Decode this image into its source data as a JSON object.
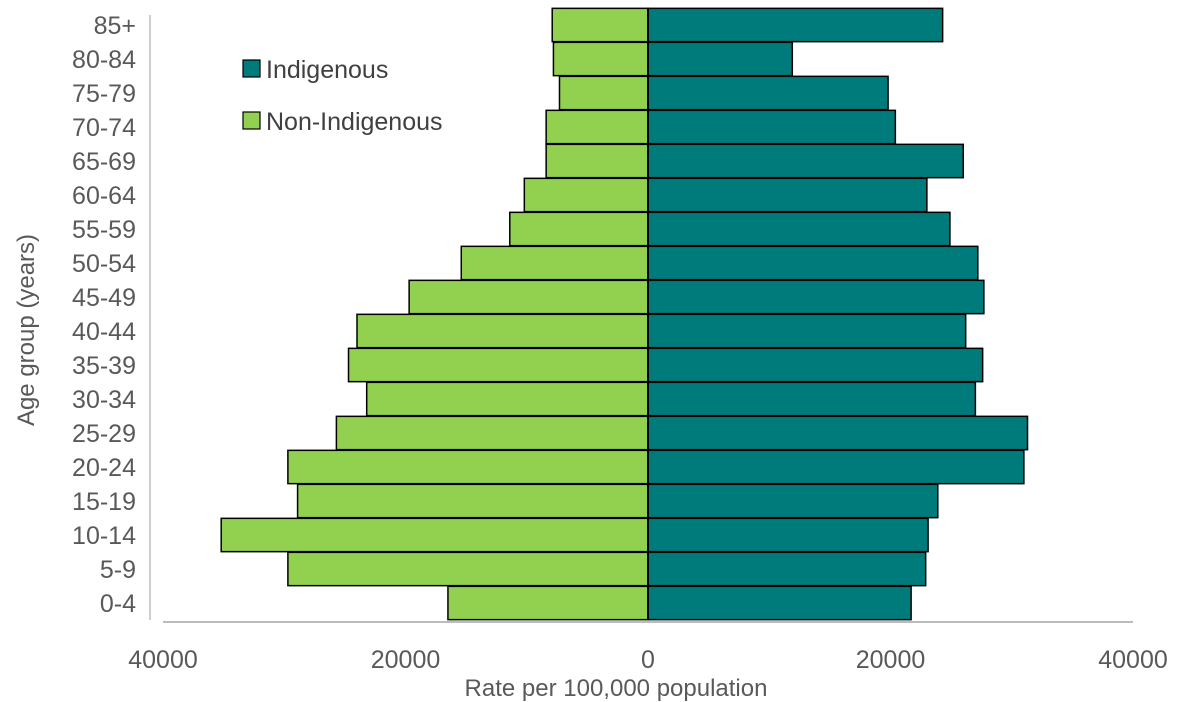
{
  "chart_data": {
    "type": "bar",
    "orientation": "horizontal-diverging",
    "title": "",
    "xlabel": "Rate per 100,000 population",
    "ylabel": "Age group (years)",
    "xlim": [
      -40000,
      40000
    ],
    "x_ticks": [
      -40000,
      -20000,
      0,
      20000,
      40000
    ],
    "x_tick_labels": [
      "40000",
      "20000",
      "0",
      "20000",
      "40000"
    ],
    "categories": [
      "0-4",
      "5-9",
      "10-14",
      "15-19",
      "20-24",
      "25-29",
      "30-34",
      "35-39",
      "40-44",
      "45-49",
      "50-54",
      "55-59",
      "60-64",
      "65-69",
      "70-74",
      "75-79",
      "80-84",
      "85+"
    ],
    "series": [
      {
        "name": "Indigenous",
        "color": "#007B7B",
        "direction": "right",
        "values": [
          21700,
          22900,
          23100,
          23900,
          31000,
          31300,
          27000,
          27600,
          26200,
          27700,
          27200,
          24900,
          23000,
          26000,
          20400,
          19800,
          11900,
          24300
        ]
      },
      {
        "name": "Non-Indigenous",
        "color": "#92D050",
        "direction": "left",
        "values": [
          16500,
          29700,
          35200,
          28900,
          29700,
          25700,
          23200,
          24700,
          24000,
          19700,
          15400,
          11400,
          10200,
          8400,
          8400,
          7300,
          7800,
          7900
        ]
      }
    ],
    "legend": {
      "position": "top-left",
      "order": [
        "Indigenous",
        "Non-Indigenous"
      ]
    },
    "grid": false
  }
}
